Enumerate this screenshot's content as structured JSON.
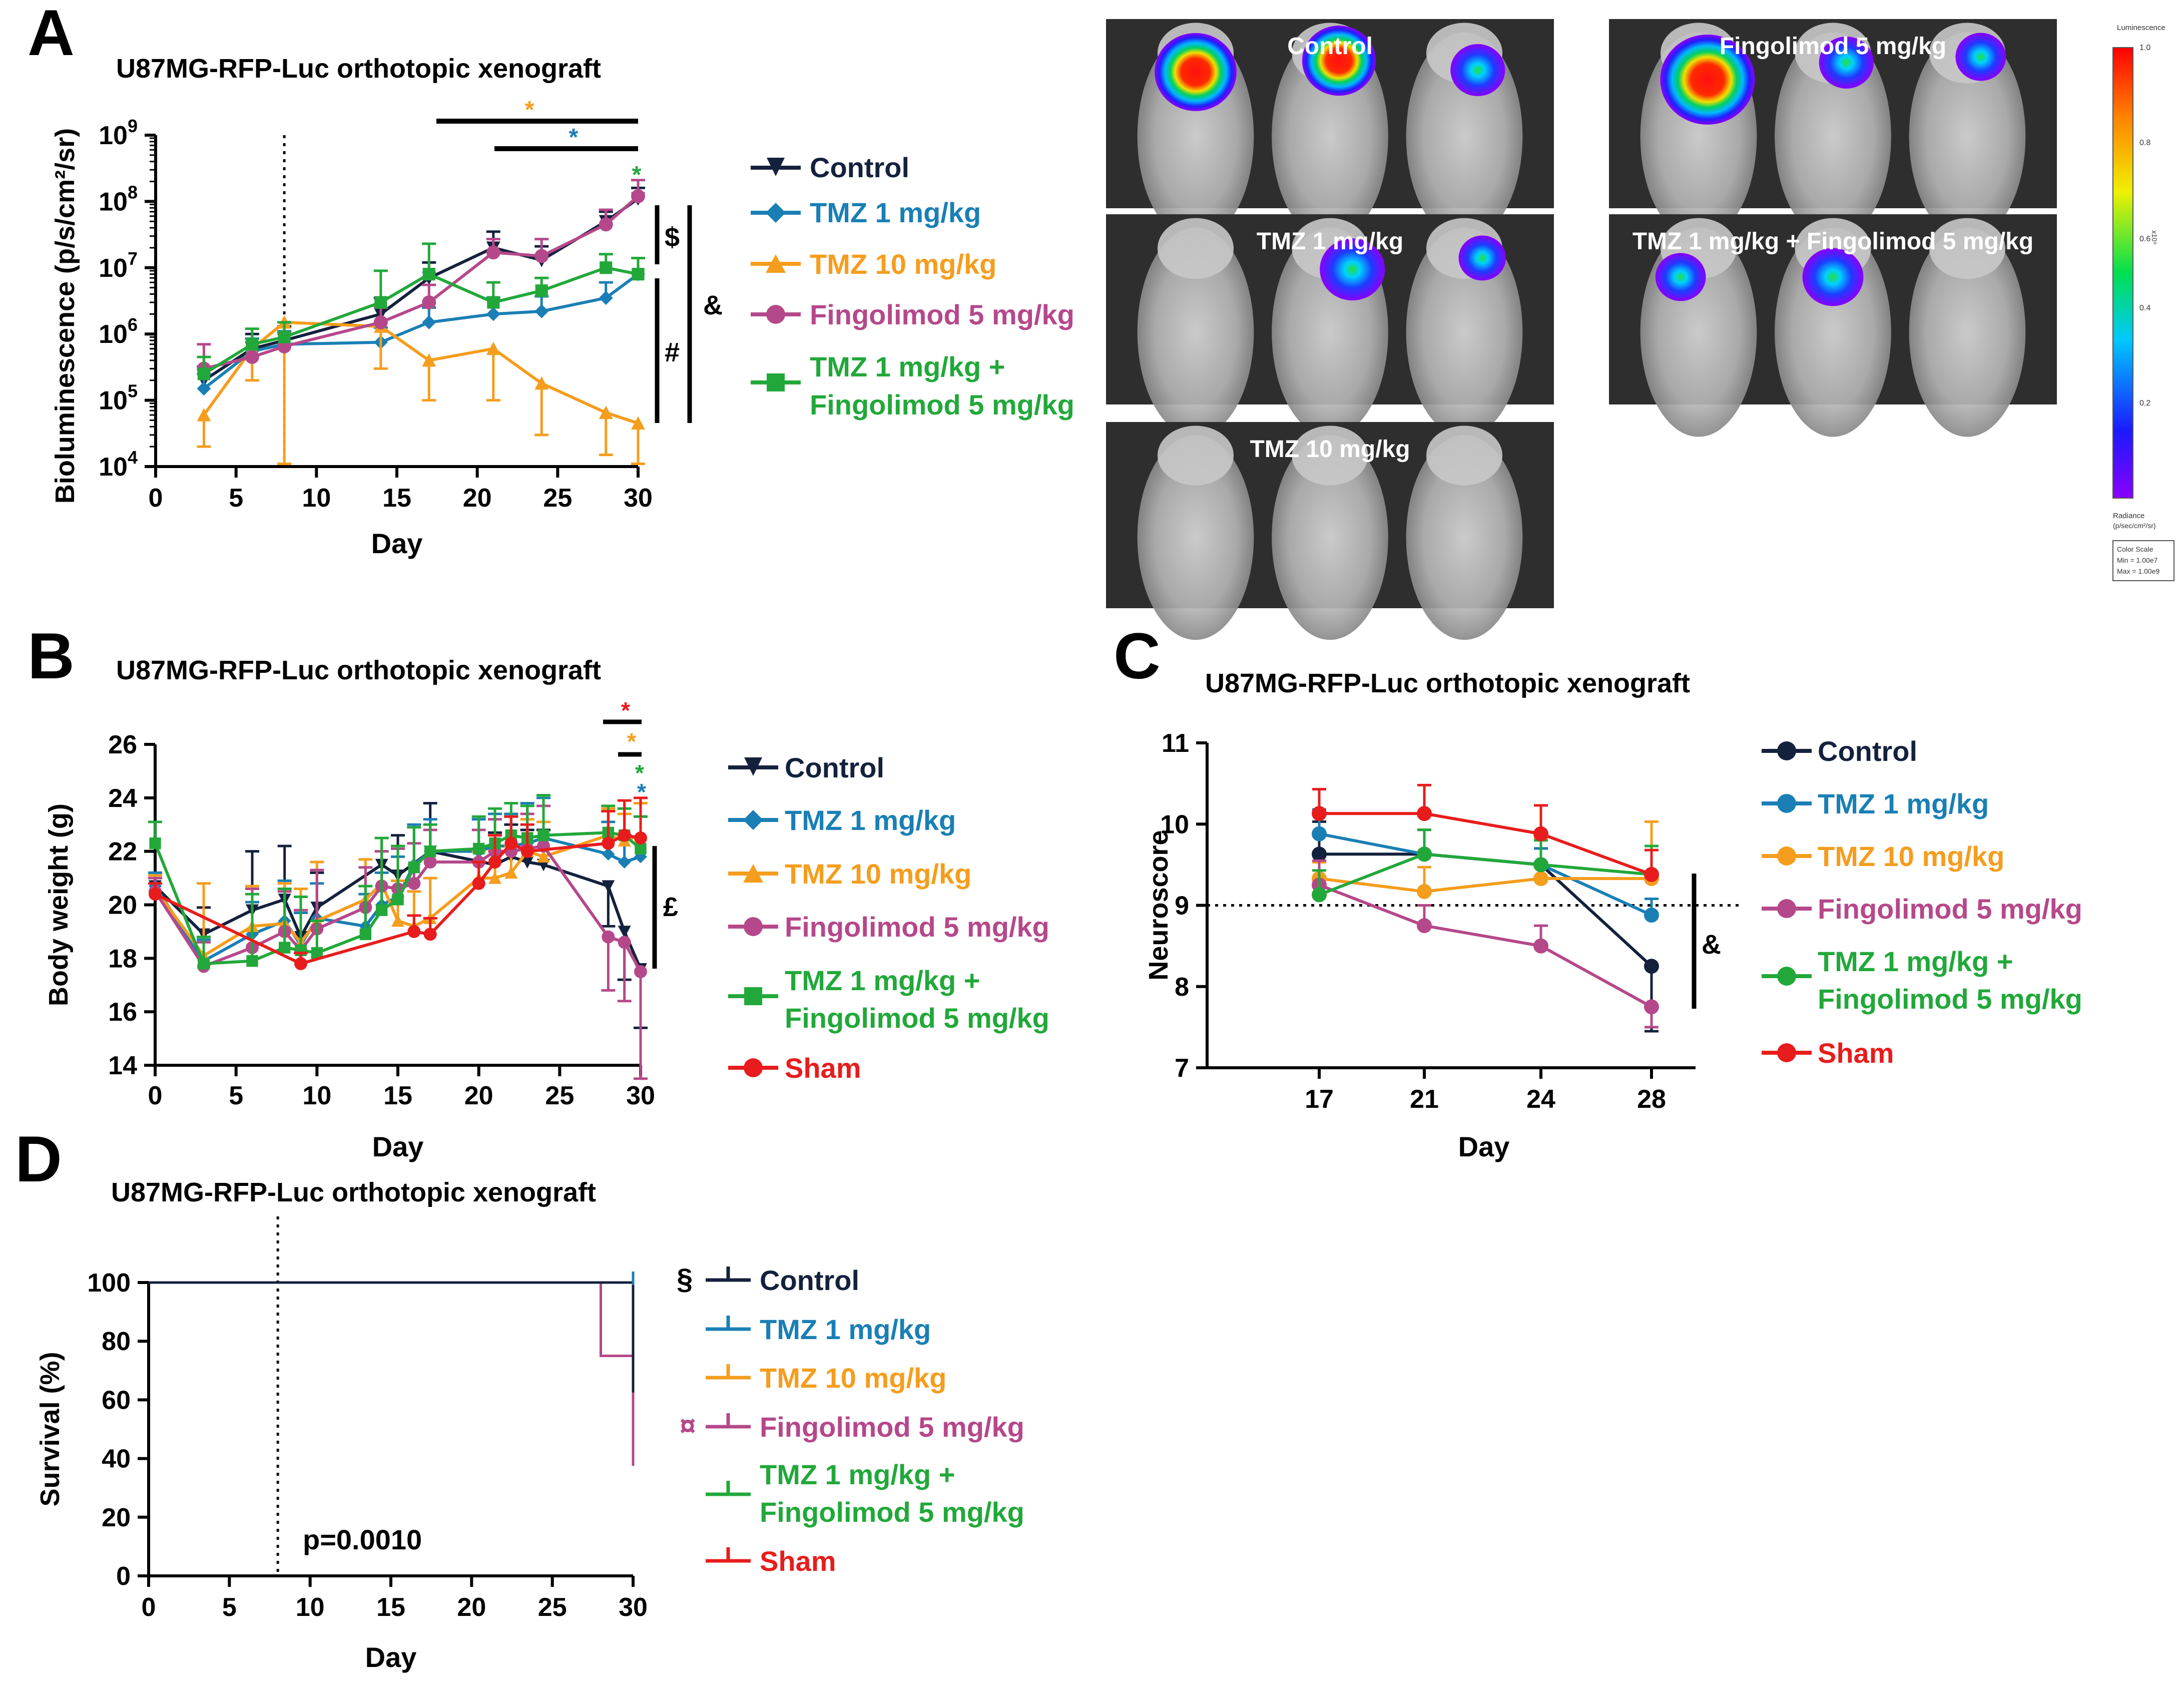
{
  "colors": {
    "control": "#14213d",
    "tmz1": "#1a7fb5",
    "tmz10": "#f59d1d",
    "fingo": "#b5488a",
    "combo": "#22a83a",
    "sham": "#e81c1c",
    "axis": "#000000"
  },
  "panel_letters": {
    "a": "A",
    "b": "B",
    "c": "C",
    "d": "D"
  },
  "panel_a": {
    "title": "U87MG-RFP-Luc orthotopic xenograft",
    "ylabel": "Bioluminescence (p/s/cm²/sr)",
    "xlabel": "Day",
    "ytick_exponents": [
      "4",
      "5",
      "6",
      "7",
      "8",
      "9"
    ],
    "ytick_base": "10",
    "xticks": [
      "0",
      "5",
      "10",
      "15",
      "20",
      "25",
      "30"
    ],
    "sig_marks": {
      "star": "*",
      "dollar": "$",
      "hash": "#",
      "amp": "&"
    },
    "legend": [
      "Control",
      "TMZ 1 mg/kg",
      "TMZ 10 mg/kg",
      "Fingolimod 5 mg/kg",
      "TMZ 1 mg/kg +",
      "Fingolimod 5 mg/kg"
    ]
  },
  "imaging": {
    "tiles": [
      "Control",
      "Fingolimod 5 mg/kg",
      "TMZ 1 mg/kg",
      "TMZ 1 mg/kg + Fingolimod 5 mg/kg",
      "TMZ 10 mg/kg"
    ],
    "scale_title": "Luminescence",
    "scale_ticks": [
      "1.0",
      "0.8",
      "0.6",
      "0.4",
      "0.2"
    ],
    "scale_unit": "x10⁹",
    "radiance_label": "Radiance",
    "radiance_unit": "(p/sec/cm²/sr)",
    "color_scale_lines": [
      "Color Scale",
      "Min = 1.00e7",
      "Max = 1.00e9"
    ]
  },
  "panel_b": {
    "title": "U87MG-RFP-Luc orthotopic xenograft",
    "ylabel": "Body weight (g)",
    "xlabel": "Day",
    "yticks": [
      "14",
      "16",
      "18",
      "20",
      "22",
      "24",
      "26"
    ],
    "xticks": [
      "0",
      "5",
      "10",
      "15",
      "20",
      "25",
      "30"
    ],
    "sig_marks": {
      "star": "*",
      "pound": "£"
    },
    "legend": [
      "Control",
      "TMZ 1 mg/kg",
      "TMZ 10 mg/kg",
      "Fingolimod 5 mg/kg",
      "TMZ 1 mg/kg +",
      "Fingolimod 5 mg/kg",
      "Sham"
    ]
  },
  "panel_c": {
    "title": "U87MG-RFP-Luc orthotopic xenograft",
    "ylabel": "Neuroscore",
    "xlabel": "Day",
    "yticks": [
      "7",
      "8",
      "9",
      "10",
      "11"
    ],
    "xticks": [
      "17",
      "21",
      "24",
      "28"
    ],
    "sig_marks": {
      "amp": "&"
    },
    "legend": [
      "Control",
      "TMZ 1 mg/kg",
      "TMZ 10 mg/kg",
      "Fingolimod 5 mg/kg",
      "TMZ 1 mg/kg +",
      "Fingolimod 5 mg/kg",
      "Sham"
    ]
  },
  "panel_d": {
    "title": "U87MG-RFP-Luc orthotopic xenograft",
    "ylabel": "Survival (%)",
    "xlabel": "Day",
    "yticks": [
      "0",
      "20",
      "40",
      "60",
      "80",
      "100"
    ],
    "xticks": [
      "0",
      "5",
      "10",
      "15",
      "20",
      "25",
      "30"
    ],
    "pvalue": "p=0.0010",
    "sig_marks": {
      "section": "§",
      "currency": "¤"
    },
    "legend": [
      "Control",
      "TMZ 1 mg/kg",
      "TMZ 10 mg/kg",
      "Fingolimod 5 mg/kg",
      "TMZ 1 mg/kg +",
      "Fingolimod 5 mg/kg",
      "Sham"
    ]
  },
  "chart_data": [
    {
      "id": "A",
      "type": "line",
      "title": "U87MG-RFP-Luc orthotopic xenograft",
      "xlabel": "Day",
      "ylabel": "Bioluminescence (p/s/cm2/sr)",
      "yscale": "log",
      "xlim": [
        0,
        30
      ],
      "ylim": [
        10000,
        1000000000
      ],
      "treatment_start_day": 8,
      "x": [
        3,
        6,
        8,
        14,
        17,
        21,
        24,
        28,
        30
      ],
      "series": [
        {
          "name": "Control",
          "key": "control",
          "values": [
            200000,
            600000,
            800000,
            2000000,
            7000000,
            20000000,
            13000000,
            50000000,
            110000000
          ],
          "err": [
            120000,
            400000,
            500000,
            1500000,
            5000000,
            15000000,
            8000000,
            20000000,
            50000000
          ]
        },
        {
          "name": "TMZ 1 mg/kg",
          "key": "tmz1",
          "values": [
            150000,
            550000,
            700000,
            750000,
            1500000,
            2000000,
            2200000,
            3500000,
            8000000
          ],
          "err": [
            100000,
            300000,
            400000,
            500000,
            1000000,
            1500000,
            1500000,
            2500000,
            6000000
          ]
        },
        {
          "name": "TMZ 10 mg/kg",
          "key": "tmz10",
          "values": [
            60000,
            600000,
            1500000,
            1300000,
            400000,
            600000,
            180000,
            65000,
            45000
          ],
          "err": [
            40000,
            400000,
            3500000,
            1000000,
            300000,
            500000,
            150000,
            50000,
            35000
          ]
        },
        {
          "name": "Fingolimod 5 mg/kg",
          "key": "fingo",
          "values": [
            300000,
            450000,
            650000,
            1500000,
            3000000,
            17000000,
            15000000,
            45000000,
            120000000
          ],
          "err": [
            400000,
            300000,
            400000,
            1000000,
            2500000,
            10000000,
            12000000,
            30000000,
            90000000
          ]
        },
        {
          "name": "TMZ 1 mg/kg + Fingolimod 5 mg/kg",
          "key": "combo",
          "values": [
            250000,
            700000,
            900000,
            3000000,
            8000000,
            3000000,
            4500000,
            10000000,
            8000000
          ],
          "err": [
            200000,
            500000,
            600000,
            6000000,
            15000000,
            3000000,
            2500000,
            6000000,
            6000000
          ]
        }
      ]
    },
    {
      "id": "B",
      "type": "line",
      "title": "U87MG-RFP-Luc orthotopic xenograft",
      "xlabel": "Day",
      "ylabel": "Body weight (g)",
      "xlim": [
        0,
        30
      ],
      "ylim": [
        14,
        26
      ],
      "series": [
        {
          "name": "Control",
          "key": "control",
          "marker": "tri-down",
          "x": [
            0,
            3,
            6,
            8,
            9,
            10,
            14,
            15,
            17,
            21,
            22,
            23,
            24,
            28,
            29,
            30
          ],
          "values": [
            20.7,
            18.9,
            19.8,
            20.2,
            18.8,
            19.9,
            21.5,
            21.1,
            22.0,
            21.5,
            21.8,
            21.6,
            21.5,
            20.7,
            19.0,
            17.6
          ],
          "err": [
            0.5,
            1.0,
            2.2,
            2.0,
            1.5,
            1.3,
            1.0,
            1.5,
            1.8,
            1.2,
            1.2,
            1.2,
            1.3,
            1.5,
            1.8,
            2.2
          ]
        },
        {
          "name": "TMZ 1 mg/kg",
          "key": "tmz1",
          "marker": "diamond",
          "x": [
            0,
            3,
            6,
            8,
            9,
            10,
            13,
            14,
            15,
            16,
            17,
            20,
            21,
            22,
            23,
            24,
            28,
            29,
            30
          ],
          "values": [
            20.7,
            17.9,
            18.9,
            19.4,
            18.5,
            19.5,
            19.2,
            20.0,
            20.3,
            21.5,
            22.0,
            22.0,
            22.2,
            22.2,
            22.3,
            22.5,
            21.9,
            21.6,
            21.8
          ],
          "err": [
            0.5,
            0.8,
            1.2,
            1.5,
            1.2,
            1.3,
            1.2,
            1.2,
            1.5,
            1.5,
            1.2,
            1.2,
            1.2,
            1.2,
            1.5,
            1.5,
            1.2,
            1.0,
            1.5
          ]
        },
        {
          "name": "TMZ 10 mg/kg",
          "key": "tmz10",
          "marker": "triangle",
          "x": [
            0,
            3,
            6,
            8,
            9,
            10,
            13,
            14,
            15,
            16,
            17,
            20,
            21,
            22,
            23,
            24,
            28,
            29,
            30
          ],
          "values": [
            20.6,
            18.1,
            19.2,
            19.3,
            18.6,
            19.4,
            20.2,
            20.8,
            19.4,
            19.2,
            19.5,
            21.0,
            21.0,
            21.2,
            22.0,
            21.8,
            22.6,
            22.4,
            22.6
          ],
          "err": [
            0.5,
            2.7,
            1.5,
            1.5,
            2.0,
            2.2,
            1.5,
            1.2,
            1.5,
            1.3,
            1.5,
            1.0,
            1.0,
            1.0,
            1.2,
            1.3,
            1.0,
            1.0,
            1.2
          ]
        },
        {
          "name": "Fingolimod 5 mg/kg",
          "key": "fingo",
          "marker": "circle",
          "x": [
            0,
            3,
            6,
            8,
            9,
            10,
            13,
            14,
            15,
            16,
            17,
            20,
            21,
            22,
            23,
            24,
            28,
            29,
            30
          ],
          "values": [
            20.5,
            17.7,
            18.4,
            19.0,
            18.3,
            19.1,
            19.9,
            20.7,
            20.6,
            20.8,
            21.6,
            21.6,
            22.0,
            22.0,
            22.1,
            22.2,
            18.8,
            18.6,
            17.5
          ],
          "err": [
            0.5,
            0.9,
            2.2,
            1.5,
            1.5,
            2.2,
            1.5,
            1.3,
            1.5,
            1.5,
            1.2,
            1.2,
            1.2,
            1.3,
            1.3,
            1.5,
            2.0,
            2.2,
            4.0
          ]
        },
        {
          "name": "TMZ 1 mg/kg + Fingolimod 5 mg/kg",
          "key": "combo",
          "marker": "square",
          "x": [
            0,
            3,
            6,
            8,
            9,
            10,
            13,
            14,
            15,
            16,
            17,
            20,
            21,
            22,
            23,
            24,
            28,
            29,
            30
          ],
          "values": [
            22.3,
            17.8,
            17.9,
            18.4,
            18.3,
            18.2,
            18.9,
            19.8,
            20.2,
            21.4,
            22.0,
            22.1,
            22.3,
            22.6,
            22.5,
            22.6,
            22.7,
            22.6,
            22.1
          ],
          "err": [
            0.8,
            1.0,
            2.5,
            2.2,
            2.0,
            1.2,
            1.8,
            2.7,
            2.0,
            1.5,
            1.0,
            1.2,
            1.3,
            1.2,
            1.2,
            1.5,
            1.0,
            1.0,
            1.2
          ]
        },
        {
          "name": "Sham",
          "key": "sham",
          "marker": "circle",
          "x": [
            0,
            9,
            16,
            17,
            20,
            21,
            22,
            23,
            28,
            29,
            30
          ],
          "values": [
            20.4,
            17.8,
            19.0,
            18.9,
            20.8,
            21.6,
            22.3,
            22.0,
            22.3,
            22.6,
            22.5
          ],
          "err": [
            0.4,
            0.4,
            0.6,
            0.6,
            0.8,
            1.0,
            1.0,
            1.0,
            1.2,
            1.3,
            1.5
          ]
        }
      ]
    },
    {
      "id": "C",
      "type": "line",
      "title": "U87MG-RFP-Luc orthotopic xenograft",
      "xlabel": "Day",
      "ylabel": "Neuroscore",
      "ylim": [
        7,
        11
      ],
      "threshold": 9,
      "categories": [
        "17",
        "21",
        "24",
        "28"
      ],
      "series": [
        {
          "name": "Control",
          "key": "control",
          "values": [
            9.63,
            9.63,
            9.5,
            8.25
          ],
          "err": [
            0.4,
            0.3,
            0.2,
            0.8
          ]
        },
        {
          "name": "TMZ 1 mg/kg",
          "key": "tmz1",
          "values": [
            9.88,
            9.63,
            9.5,
            8.88
          ],
          "err": [
            0.3,
            0.3,
            0.2,
            0.2
          ]
        },
        {
          "name": "TMZ 10 mg/kg",
          "key": "tmz10",
          "values": [
            9.33,
            9.17,
            9.33,
            9.33
          ],
          "err": [
            0.2,
            0.3,
            0.5,
            0.7
          ]
        },
        {
          "name": "Fingolimod 5 mg/kg",
          "key": "fingo",
          "values": [
            9.25,
            8.75,
            8.5,
            7.75
          ],
          "err": [
            0.3,
            0.25,
            0.25,
            0.25
          ]
        },
        {
          "name": "TMZ 1 mg/kg + Fingolimod 5 mg/kg",
          "key": "combo",
          "values": [
            9.13,
            9.63,
            9.5,
            9.38
          ],
          "err": [
            0.3,
            0.3,
            0.3,
            0.35
          ]
        },
        {
          "name": "Sham",
          "key": "sham",
          "values": [
            10.13,
            10.13,
            9.88,
            9.38
          ],
          "err": [
            0.3,
            0.35,
            0.35,
            0.3
          ]
        }
      ]
    },
    {
      "id": "D",
      "type": "line",
      "subtype": "survival",
      "title": "U87MG-RFP-Luc orthotopic xenograft",
      "xlabel": "Day",
      "ylabel": "Survival (%)",
      "xlim": [
        0,
        30
      ],
      "ylim": [
        0,
        100
      ],
      "treatment_start_day": 8,
      "pvalue": "p=0.0010",
      "series": [
        {
          "name": "Control",
          "key": "control",
          "steps": [
            [
              0,
              100
            ],
            [
              30,
              100
            ],
            [
              30,
              62.5
            ]
          ]
        },
        {
          "name": "TMZ 1 mg/kg",
          "key": "tmz1",
          "steps": [
            [
              0,
              100
            ],
            [
              30,
              100
            ]
          ]
        },
        {
          "name": "TMZ 10 mg/kg",
          "key": "tmz10",
          "steps": [
            [
              0,
              100
            ],
            [
              30,
              100
            ]
          ]
        },
        {
          "name": "Fingolimod 5 mg/kg",
          "key": "fingo",
          "steps": [
            [
              0,
              100
            ],
            [
              28,
              100
            ],
            [
              28,
              75
            ],
            [
              30,
              75
            ],
            [
              30,
              37.5
            ]
          ]
        },
        {
          "name": "TMZ 1 mg/kg + Fingolimod 5 mg/kg",
          "key": "combo",
          "steps": [
            [
              0,
              100
            ],
            [
              30,
              100
            ]
          ]
        },
        {
          "name": "Sham",
          "key": "sham",
          "steps": [
            [
              0,
              100
            ],
            [
              30,
              100
            ]
          ]
        }
      ]
    }
  ]
}
